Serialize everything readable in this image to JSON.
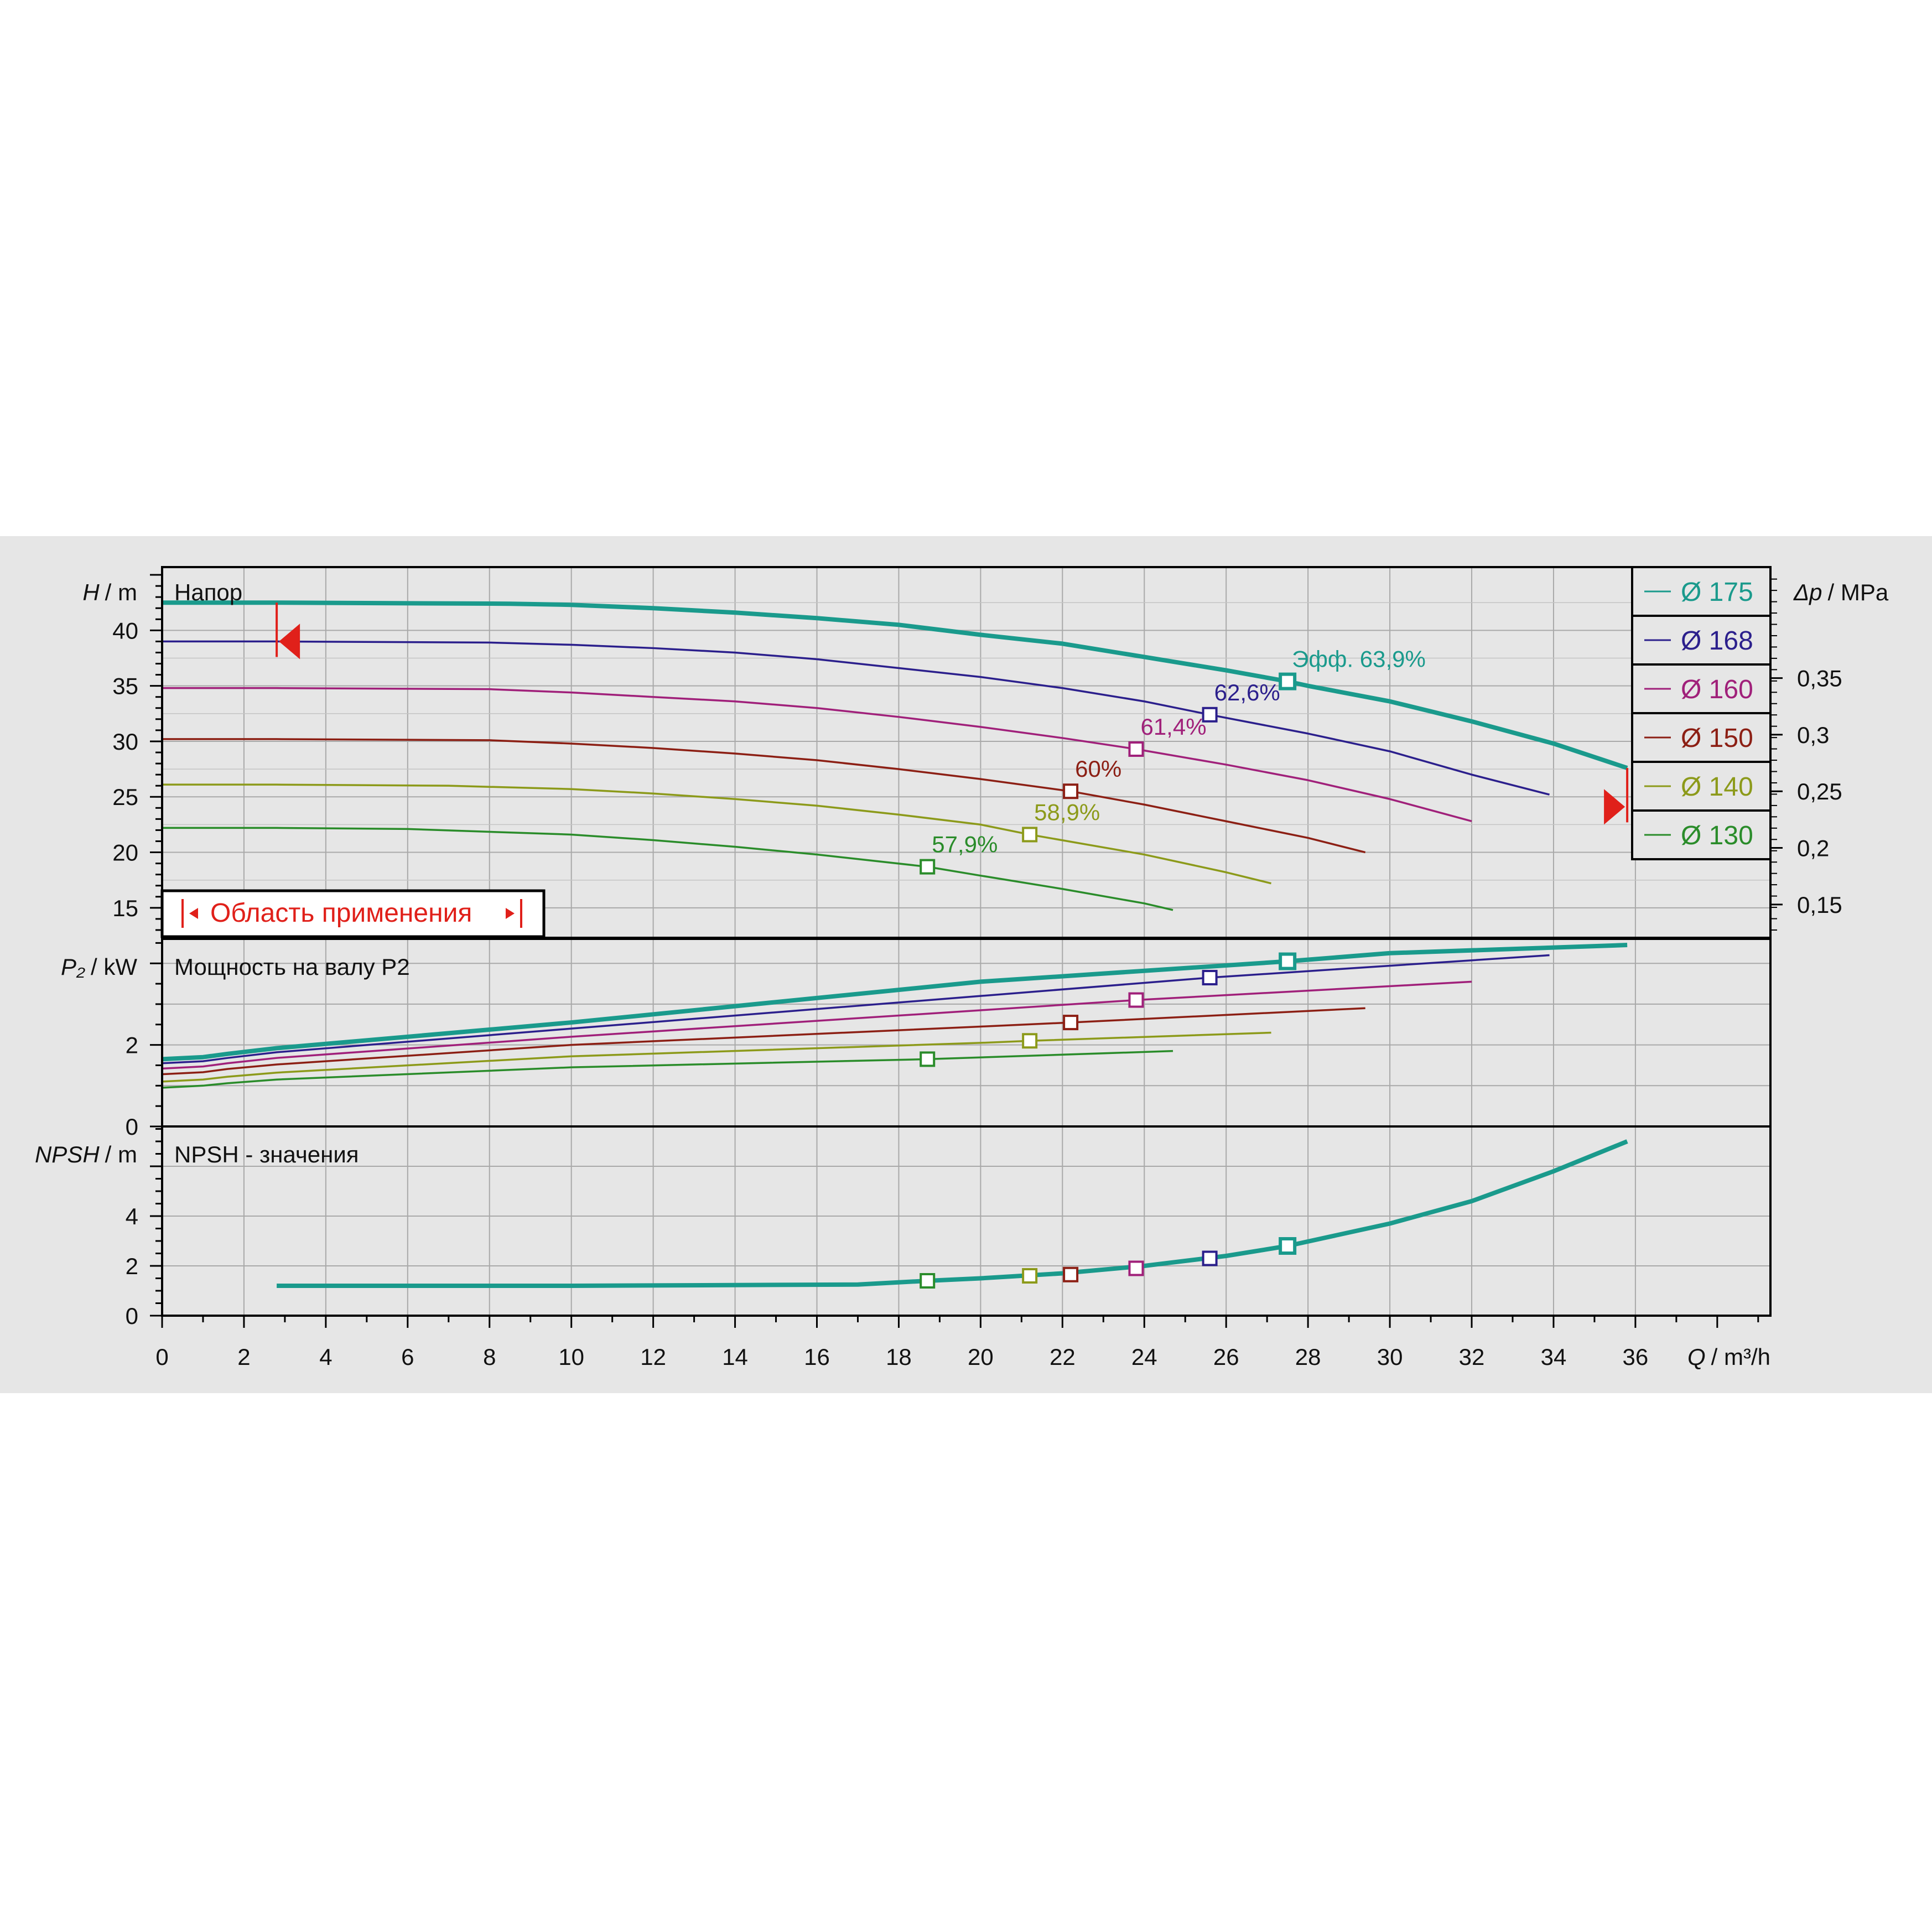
{
  "colors": {
    "d175": "#1a9a8c",
    "d168": "#2b1f8c",
    "d160": "#a0207a",
    "d150": "#8c1f14",
    "d140": "#8c9a1a",
    "d130": "#2a8c2a",
    "accent_red": "#e0201a",
    "grid": "#a9a9a9",
    "axis": "#000000"
  },
  "chart_data": {
    "type": "line",
    "x_label_symbol": "Q",
    "x_label_unit": "/ m³/h",
    "x_ticks": [
      "0",
      "2",
      "4",
      "6",
      "8",
      "10",
      "12",
      "14",
      "16",
      "18",
      "20",
      "22",
      "24",
      "26",
      "28",
      "30",
      "32",
      "34",
      "36"
    ],
    "xlim": [
      0,
      39.3
    ],
    "legend": [
      {
        "key": "d175",
        "label": "Ø 175"
      },
      {
        "key": "d168",
        "label": "Ø 168"
      },
      {
        "key": "d160",
        "label": "Ø 160"
      },
      {
        "key": "d150",
        "label": "Ø 150"
      },
      {
        "key": "d140",
        "label": "Ø 140"
      },
      {
        "key": "d130",
        "label": "Ø 130"
      }
    ],
    "head": {
      "title": "Напор",
      "ylabel_symbol": "H",
      "ylabel_unit": "/ m",
      "ylim": [
        12.3,
        45.7
      ],
      "y_ticks": [
        "15",
        "20",
        "25",
        "30",
        "35",
        "40"
      ],
      "right_label_symbol": "Δp",
      "right_label_unit": "/ MPa",
      "right_ticks": [
        "0,15",
        "0,2",
        "0,25",
        "0,3",
        "0,35"
      ],
      "right_tick_values": [
        15.3,
        20.4,
        25.5,
        30.6,
        35.7
      ],
      "region_label": "Область применения",
      "region_bounds": [
        2.8,
        35.8
      ],
      "series": [
        {
          "key": "d175",
          "bold": true,
          "x": [
            0,
            0.5,
            1,
            1.6,
            2.8,
            8.5,
            10,
            12,
            14,
            16,
            18,
            20,
            22,
            24,
            26,
            27.5,
            28,
            30,
            32,
            34,
            35.8
          ],
          "y": [
            42.5,
            42.5,
            42.5,
            42.5,
            42.5,
            42.4,
            42.3,
            42.0,
            41.6,
            41.1,
            40.5,
            39.6,
            38.8,
            37.6,
            36.4,
            35.4,
            35.0,
            33.6,
            31.8,
            29.8,
            27.6
          ]
        },
        {
          "key": "d168",
          "x": [
            0,
            0.3,
            1,
            1.6,
            2.8,
            8,
            10,
            12,
            14,
            16,
            18,
            20,
            22,
            24,
            25.6,
            28,
            30,
            32,
            33.9
          ],
          "y": [
            39.0,
            39.0,
            39.0,
            39.0,
            39.0,
            38.9,
            38.7,
            38.4,
            38.0,
            37.4,
            36.6,
            35.8,
            34.8,
            33.6,
            32.4,
            30.7,
            29.1,
            27.0,
            25.2
          ]
        },
        {
          "key": "d160",
          "x": [
            0,
            1,
            1.6,
            2.8,
            8,
            10,
            12,
            14,
            16,
            18,
            20,
            22,
            23.8,
            26,
            28,
            30,
            32
          ],
          "y": [
            34.8,
            34.8,
            34.8,
            34.8,
            34.7,
            34.4,
            34.0,
            33.6,
            33.0,
            32.2,
            31.3,
            30.3,
            29.3,
            27.9,
            26.5,
            24.8,
            22.8
          ]
        },
        {
          "key": "d150",
          "x": [
            0,
            1,
            1.6,
            2.8,
            8,
            10,
            12,
            14,
            16,
            18,
            20,
            22.2,
            24,
            26,
            28,
            29.4
          ],
          "y": [
            30.2,
            30.2,
            30.2,
            30.2,
            30.1,
            29.8,
            29.4,
            28.9,
            28.3,
            27.5,
            26.6,
            25.5,
            24.3,
            22.8,
            21.3,
            20.0
          ]
        },
        {
          "key": "d140",
          "x": [
            0,
            1,
            1.6,
            2.8,
            7,
            10,
            12,
            14,
            16,
            18,
            20,
            21.2,
            24,
            26,
            27.1
          ],
          "y": [
            26.1,
            26.1,
            26.1,
            26.1,
            26.0,
            25.7,
            25.3,
            24.8,
            24.2,
            23.4,
            22.5,
            21.6,
            19.8,
            18.2,
            17.2
          ]
        },
        {
          "key": "d130",
          "x": [
            0,
            1,
            1.6,
            2.8,
            6,
            10,
            12,
            14,
            16,
            18.7,
            20,
            22,
            24,
            24.7
          ],
          "y": [
            22.2,
            22.2,
            22.2,
            22.2,
            22.1,
            21.6,
            21.1,
            20.5,
            19.8,
            18.7,
            17.9,
            16.7,
            15.4,
            14.8
          ]
        }
      ],
      "markers": [
        {
          "key": "d175",
          "x": 27.5,
          "y": 35.4,
          "label": "Эфф.   63,9%"
        },
        {
          "key": "d168",
          "x": 25.6,
          "y": 32.4,
          "label": "62,6%"
        },
        {
          "key": "d160",
          "x": 23.8,
          "y": 29.3,
          "label": "61,4%"
        },
        {
          "key": "d150",
          "x": 22.2,
          "y": 25.5,
          "label": "60%"
        },
        {
          "key": "d140",
          "x": 21.2,
          "y": 21.6,
          "label": "58,9%"
        },
        {
          "key": "d130",
          "x": 18.7,
          "y": 18.7,
          "label": "57,9%"
        }
      ]
    },
    "power": {
      "title": "Мощность на валу P2",
      "ylabel_symbol": "P₂",
      "ylabel_unit": "/ kW",
      "ylim": [
        0,
        4.6
      ],
      "y_ticks": [
        "0",
        "2"
      ],
      "series": [
        {
          "key": "d175",
          "bold": true,
          "x": [
            0,
            1,
            1.6,
            2.8,
            10,
            20,
            27.5,
            30,
            35.8
          ],
          "y": [
            1.65,
            1.7,
            1.78,
            1.92,
            2.55,
            3.55,
            4.05,
            4.25,
            4.45
          ]
        },
        {
          "key": "d168",
          "x": [
            0,
            1,
            1.6,
            2.8,
            10,
            20,
            25.6,
            33.9
          ],
          "y": [
            1.55,
            1.6,
            1.68,
            1.82,
            2.4,
            3.2,
            3.65,
            4.2
          ]
        },
        {
          "key": "d160",
          "x": [
            0,
            1,
            1.6,
            2.8,
            10,
            20,
            23.8,
            32
          ],
          "y": [
            1.42,
            1.47,
            1.55,
            1.68,
            2.2,
            2.85,
            3.1,
            3.55
          ]
        },
        {
          "key": "d150",
          "x": [
            0,
            1,
            1.6,
            2.8,
            10,
            20,
            22.2,
            29.4
          ],
          "y": [
            1.28,
            1.33,
            1.41,
            1.52,
            2.0,
            2.45,
            2.55,
            2.9
          ]
        },
        {
          "key": "d140",
          "x": [
            0,
            1,
            1.6,
            2.8,
            10,
            20,
            21.2,
            27.1
          ],
          "y": [
            1.1,
            1.15,
            1.22,
            1.32,
            1.72,
            2.05,
            2.1,
            2.3
          ]
        },
        {
          "key": "d130",
          "x": [
            0,
            1,
            1.6,
            2.8,
            10,
            18.7,
            24.7
          ],
          "y": [
            0.95,
            1.0,
            1.06,
            1.15,
            1.45,
            1.65,
            1.85
          ]
        }
      ],
      "markers": [
        {
          "key": "d175",
          "x": 27.5,
          "y": 4.05
        },
        {
          "key": "d168",
          "x": 25.6,
          "y": 3.65
        },
        {
          "key": "d160",
          "x": 23.8,
          "y": 3.1
        },
        {
          "key": "d150",
          "x": 22.2,
          "y": 2.55
        },
        {
          "key": "d140",
          "x": 21.2,
          "y": 2.1
        },
        {
          "key": "d130",
          "x": 18.7,
          "y": 1.65
        }
      ]
    },
    "npsh": {
      "title": "NPSH - значения",
      "ylabel_symbol": "NPSH",
      "ylabel_unit": "/ m",
      "ylim": [
        0,
        7.6
      ],
      "y_ticks": [
        "0",
        "2",
        "4"
      ],
      "series": [
        {
          "key": "d175",
          "bold": true,
          "x": [
            2.8,
            10,
            17,
            18.7,
            20,
            22,
            24,
            26,
            27.5,
            30,
            32,
            34,
            35.8
          ],
          "y": [
            1.2,
            1.2,
            1.25,
            1.4,
            1.5,
            1.7,
            2.0,
            2.4,
            2.8,
            3.7,
            4.6,
            5.8,
            7.0
          ]
        }
      ],
      "markers": [
        {
          "key": "d175",
          "x": 27.5,
          "y": 2.8
        },
        {
          "key": "d168",
          "x": 25.6,
          "y": 2.3
        },
        {
          "key": "d160",
          "x": 23.8,
          "y": 1.9
        },
        {
          "key": "d150",
          "x": 22.2,
          "y": 1.65
        },
        {
          "key": "d140",
          "x": 21.2,
          "y": 1.6
        },
        {
          "key": "d130",
          "x": 18.7,
          "y": 1.4
        }
      ]
    }
  }
}
